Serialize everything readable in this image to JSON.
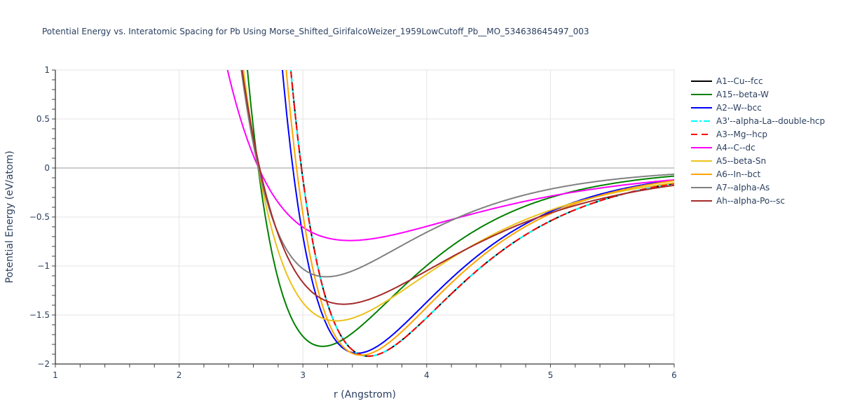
{
  "title": "Potential Energy vs. Interatomic Spacing for Pb Using Morse_Shifted_GirifalcoWeizer_1959LowCutoff_Pb__MO_534638645497_003",
  "chart_data": {
    "type": "line",
    "title": "Potential Energy vs. Interatomic Spacing for Pb Using Morse_Shifted_GirifalcoWeizer_1959LowCutoff_Pb__MO_534638645497_003",
    "xlabel": "r (Angstrom)",
    "ylabel": "Potential Energy (eV/atom)",
    "xlim": [
      1,
      6
    ],
    "ylim": [
      -2,
      1
    ],
    "xticks": [
      1,
      2,
      3,
      4,
      5,
      6
    ],
    "xtick_labels": [
      "1",
      "2",
      "3",
      "4",
      "5",
      "6"
    ],
    "yticks": [
      1,
      0.5,
      0,
      -0.5,
      -1,
      -1.5,
      -2
    ],
    "ytick_labels": [
      "1",
      "0.5",
      "0",
      "−0.5",
      "−1",
      "−1.5",
      "−2"
    ],
    "grid": true,
    "legend_position": "right",
    "curve_model": "E(r) = D*((1-exp(-a*(r-r0)))^2 - 1)",
    "series": [
      {
        "name": "A1--Cu--fcc",
        "color": "#000000",
        "dash": "solid",
        "D": 1.92,
        "a": 1.28,
        "r0": 3.53,
        "points": [
          [
            2.85,
            1.77
          ],
          [
            3.0,
            -0.11
          ],
          [
            3.2,
            -1.39
          ],
          [
            3.4,
            -1.86
          ],
          [
            3.53,
            -1.92
          ],
          [
            3.8,
            -1.76
          ],
          [
            4.0,
            -1.53
          ],
          [
            4.5,
            -0.95
          ],
          [
            5.0,
            -0.54
          ],
          [
            5.5,
            -0.3
          ],
          [
            6.0,
            -0.16
          ]
        ]
      },
      {
        "name": "A15--beta-W",
        "color": "#008000",
        "dash": "solid",
        "D": 1.82,
        "a": 1.33,
        "r0": 3.16,
        "points": [
          [
            2.6,
            0.3
          ],
          [
            2.8,
            -1.02
          ],
          [
            3.0,
            -1.73
          ],
          [
            3.16,
            -1.82
          ],
          [
            3.5,
            -1.58
          ],
          [
            4.0,
            -0.96
          ],
          [
            4.5,
            -0.52
          ],
          [
            5.0,
            -0.28
          ],
          [
            5.5,
            -0.15
          ],
          [
            6.0,
            -0.08
          ]
        ]
      },
      {
        "name": "A2--W--bcc",
        "color": "#0000ff",
        "dash": "solid",
        "D": 1.89,
        "a": 1.33,
        "r0": 3.44,
        "points": [
          [
            2.85,
            1.0
          ],
          [
            3.0,
            -0.34
          ],
          [
            3.2,
            -1.47
          ],
          [
            3.44,
            -1.89
          ],
          [
            3.8,
            -1.7
          ],
          [
            4.0,
            -1.41
          ],
          [
            4.5,
            -0.81
          ],
          [
            5.0,
            -0.45
          ],
          [
            5.5,
            -0.24
          ],
          [
            6.0,
            -0.13
          ]
        ]
      },
      {
        "name": "A3'--alpha-La--double-hcp",
        "color": "#00ffff",
        "dash": "dashdot",
        "D": 1.92,
        "a": 1.28,
        "r0": 3.53,
        "points": [
          [
            2.85,
            1.77
          ],
          [
            3.0,
            -0.11
          ],
          [
            3.2,
            -1.39
          ],
          [
            3.4,
            -1.86
          ],
          [
            3.53,
            -1.92
          ],
          [
            3.8,
            -1.76
          ],
          [
            4.0,
            -1.53
          ],
          [
            4.5,
            -0.95
          ],
          [
            5.0,
            -0.54
          ],
          [
            5.5,
            -0.3
          ],
          [
            6.0,
            -0.16
          ]
        ]
      },
      {
        "name": "A3--Mg--hcp",
        "color": "#ff0000",
        "dash": "dash",
        "D": 1.92,
        "a": 1.28,
        "r0": 3.53,
        "points": [
          [
            2.85,
            1.77
          ],
          [
            3.0,
            -0.11
          ],
          [
            3.2,
            -1.39
          ],
          [
            3.4,
            -1.86
          ],
          [
            3.53,
            -1.92
          ],
          [
            3.8,
            -1.76
          ],
          [
            4.0,
            -1.53
          ],
          [
            4.5,
            -0.95
          ],
          [
            5.0,
            -0.54
          ],
          [
            5.5,
            -0.3
          ],
          [
            6.0,
            -0.16
          ]
        ]
      },
      {
        "name": "A4--C--dc",
        "color": "#ff00ff",
        "dash": "solid",
        "D": 0.74,
        "a": 0.94,
        "r0": 3.38,
        "points": [
          [
            2.55,
            0.2
          ],
          [
            2.8,
            -0.25
          ],
          [
            3.0,
            -0.54
          ],
          [
            3.38,
            -0.74
          ],
          [
            4.0,
            -0.55
          ],
          [
            4.5,
            -0.34
          ],
          [
            5.0,
            -0.19
          ],
          [
            5.5,
            -0.11
          ],
          [
            6.0,
            -0.06
          ]
        ]
      },
      {
        "name": "A5--beta-Sn",
        "color": "#ecc21b",
        "dash": "solid",
        "D": 1.56,
        "a": 1.1,
        "r0": 3.27,
        "points": [
          [
            2.6,
            0.15
          ],
          [
            2.8,
            -0.74
          ],
          [
            3.0,
            -1.31
          ],
          [
            3.27,
            -1.56
          ],
          [
            3.6,
            -1.38
          ],
          [
            4.0,
            -0.96
          ],
          [
            4.5,
            -0.52
          ],
          [
            5.0,
            -0.27
          ],
          [
            5.5,
            -0.14
          ],
          [
            6.0,
            -0.08
          ]
        ]
      },
      {
        "name": "A6--In--bct",
        "color": "#ffa500",
        "dash": "solid",
        "D": 1.91,
        "a": 1.33,
        "r0": 3.47,
        "points": [
          [
            2.85,
            1.31
          ],
          [
            3.0,
            -0.15
          ],
          [
            3.2,
            -1.35
          ],
          [
            3.47,
            -1.91
          ],
          [
            3.8,
            -1.74
          ],
          [
            4.0,
            -1.47
          ],
          [
            4.5,
            -0.86
          ],
          [
            5.0,
            -0.48
          ],
          [
            5.5,
            -0.26
          ],
          [
            6.0,
            -0.14
          ]
        ]
      },
      {
        "name": "A7--alpha-As",
        "color": "#808080",
        "dash": "solid",
        "D": 1.11,
        "a": 1.26,
        "r0": 3.19,
        "points": [
          [
            2.5,
            0.95
          ],
          [
            2.7,
            -0.22
          ],
          [
            2.9,
            -0.86
          ],
          [
            3.19,
            -1.11
          ],
          [
            3.5,
            -0.99
          ],
          [
            4.0,
            -0.61
          ],
          [
            4.5,
            -0.32
          ],
          [
            5.0,
            -0.18
          ],
          [
            5.5,
            -0.09
          ],
          [
            6.0,
            -0.05
          ]
        ]
      },
      {
        "name": "Ah--alpha-Po--sc",
        "color": "#a52a2a",
        "dash": "solid",
        "D": 1.39,
        "a": 1.02,
        "r0": 3.33,
        "points": [
          [
            2.6,
            0.1
          ],
          [
            2.8,
            -0.58
          ],
          [
            3.0,
            -1.09
          ],
          [
            3.33,
            -1.39
          ],
          [
            3.6,
            -1.3
          ],
          [
            4.0,
            -0.95
          ],
          [
            4.5,
            -0.55
          ],
          [
            5.0,
            -0.31
          ],
          [
            5.5,
            -0.17
          ],
          [
            6.0,
            -0.09
          ]
        ]
      }
    ]
  }
}
